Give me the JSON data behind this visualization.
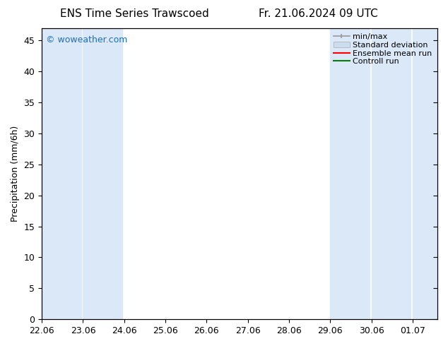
{
  "title_left": "ENS Time Series Trawscoed",
  "title_right": "Fr. 21.06.2024 09 UTC",
  "ylabel": "Precipitation (mm/6h)",
  "watermark": "© woweather.com",
  "watermark_color": "#1a6fc4",
  "ylim": [
    0,
    47
  ],
  "yticks": [
    0,
    5,
    10,
    15,
    20,
    25,
    30,
    35,
    40,
    45
  ],
  "bg_color": "#ffffff",
  "plot_bg_color": "#ffffff",
  "shaded_color": "#dae8f7",
  "xtick_labels": [
    "22.06",
    "23.06",
    "24.06",
    "25.06",
    "26.06",
    "27.06",
    "28.06",
    "29.06",
    "30.06",
    "01.07"
  ],
  "xmin": 0.0,
  "xmax": 9.6,
  "shaded_bands": [
    [
      0.0,
      0.95
    ],
    [
      1.0,
      1.95
    ],
    [
      7.0,
      7.95
    ],
    [
      8.0,
      8.95
    ],
    [
      9.0,
      9.6
    ]
  ],
  "legend_labels": [
    "min/max",
    "Standard deviation",
    "Ensemble mean run",
    "Controll run"
  ],
  "font_size_title": 11,
  "font_size_axis": 9,
  "font_size_legend": 8,
  "font_size_watermark": 9,
  "tick_color": "#000000",
  "spine_color": "#000000"
}
